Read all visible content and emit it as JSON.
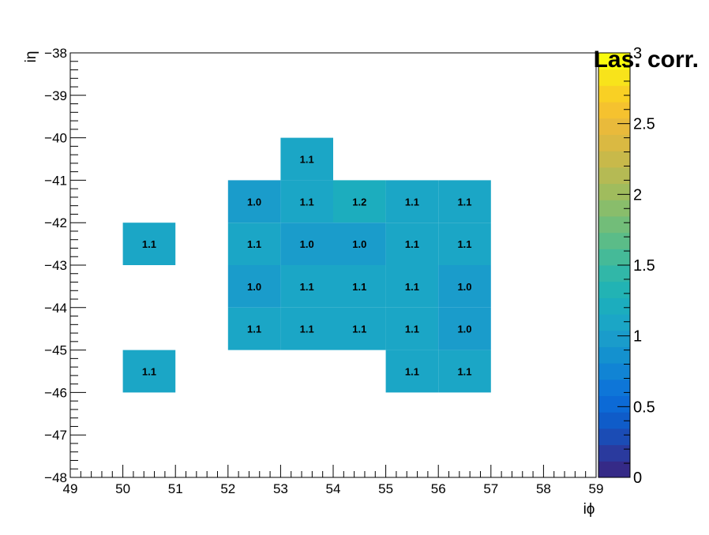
{
  "chart_data": {
    "type": "heatmap",
    "title": "Las. corr.",
    "xlabel": "iϕ",
    "ylabel": "iη",
    "xlim": [
      49,
      59
    ],
    "ylim": [
      -48,
      -38
    ],
    "x_ticks": [
      "49",
      "50",
      "51",
      "52",
      "53",
      "54",
      "55",
      "56",
      "57",
      "58",
      "59"
    ],
    "y_ticks": [
      "−38",
      "−39",
      "−40",
      "−41",
      "−42",
      "−43",
      "−44",
      "−45",
      "−46",
      "−47",
      "−48"
    ],
    "colorbar": {
      "min": 0,
      "max": 3,
      "ticks": [
        "0",
        "0.5",
        "1",
        "1.5",
        "2",
        "2.5",
        "3"
      ]
    },
    "palette": [
      "#352a87",
      "#2a3a9e",
      "#1b4cb5",
      "#0f5cc9",
      "#0c6ad6",
      "#0e76d8",
      "#1184d4",
      "#1491cf",
      "#1a9ccb",
      "#1ba6c6",
      "#1cadbe",
      "#22b3b4",
      "#31b7a8",
      "#45ba98",
      "#5bbc88",
      "#72bd79",
      "#89bd6b",
      "#a0bc5d",
      "#b5ba54",
      "#c8b94a",
      "#dab942",
      "#e9ba3b",
      "#f5c22f",
      "#f9d024",
      "#f8e31b",
      "#f9fb0e"
    ],
    "cells": [
      {
        "x": 53,
        "y": -41,
        "value": 1.1,
        "label": "1.1"
      },
      {
        "x": 52,
        "y": -42,
        "value": 1.0,
        "label": "1.0"
      },
      {
        "x": 53,
        "y": -42,
        "value": 1.1,
        "label": "1.1"
      },
      {
        "x": 54,
        "y": -42,
        "value": 1.2,
        "label": "1.2"
      },
      {
        "x": 55,
        "y": -42,
        "value": 1.1,
        "label": "1.1"
      },
      {
        "x": 56,
        "y": -42,
        "value": 1.1,
        "label": "1.1"
      },
      {
        "x": 50,
        "y": -43,
        "value": 1.1,
        "label": "1.1"
      },
      {
        "x": 52,
        "y": -43,
        "value": 1.1,
        "label": "1.1"
      },
      {
        "x": 53,
        "y": -43,
        "value": 1.0,
        "label": "1.0"
      },
      {
        "x": 54,
        "y": -43,
        "value": 1.0,
        "label": "1.0"
      },
      {
        "x": 55,
        "y": -43,
        "value": 1.1,
        "label": "1.1"
      },
      {
        "x": 56,
        "y": -43,
        "value": 1.1,
        "label": "1.1"
      },
      {
        "x": 52,
        "y": -44,
        "value": 1.0,
        "label": "1.0"
      },
      {
        "x": 53,
        "y": -44,
        "value": 1.1,
        "label": "1.1"
      },
      {
        "x": 54,
        "y": -44,
        "value": 1.1,
        "label": "1.1"
      },
      {
        "x": 55,
        "y": -44,
        "value": 1.1,
        "label": "1.1"
      },
      {
        "x": 56,
        "y": -44,
        "value": 1.0,
        "label": "1.0"
      },
      {
        "x": 52,
        "y": -45,
        "value": 1.1,
        "label": "1.1"
      },
      {
        "x": 53,
        "y": -45,
        "value": 1.1,
        "label": "1.1"
      },
      {
        "x": 54,
        "y": -45,
        "value": 1.1,
        "label": "1.1"
      },
      {
        "x": 55,
        "y": -45,
        "value": 1.1,
        "label": "1.1"
      },
      {
        "x": 56,
        "y": -45,
        "value": 1.0,
        "label": "1.0"
      },
      {
        "x": 50,
        "y": -46,
        "value": 1.1,
        "label": "1.1"
      },
      {
        "x": 55,
        "y": -46,
        "value": 1.1,
        "label": "1.1"
      },
      {
        "x": 56,
        "y": -46,
        "value": 1.1,
        "label": "1.1"
      }
    ]
  }
}
